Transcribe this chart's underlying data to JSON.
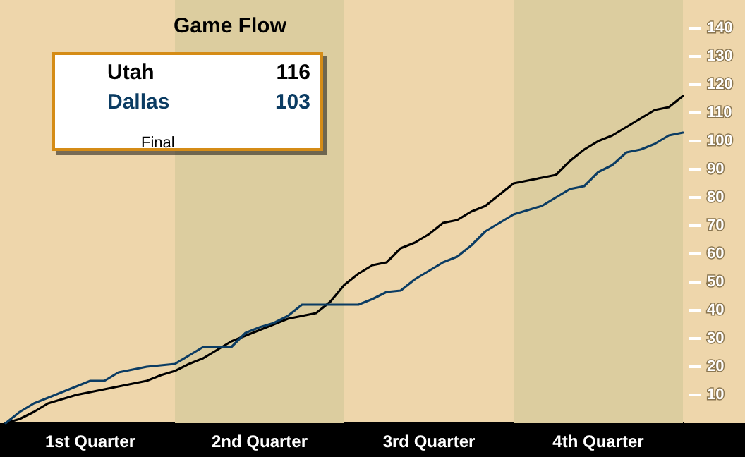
{
  "chart_data": {
    "type": "line",
    "title": "Game Flow",
    "annotations": [
      "116",
      "103",
      "Final"
    ],
    "categories": [
      null,
      null,
      null,
      null,
      null,
      null,
      "1st Quarter",
      null,
      null,
      null,
      null,
      null,
      null,
      null,
      null,
      null,
      null,
      null,
      "2nd Quarter",
      null,
      null,
      null,
      null,
      null,
      null,
      null,
      null,
      null,
      null,
      null,
      "3rd Quarter",
      null,
      null,
      null,
      null,
      null,
      null,
      null,
      null,
      null,
      null,
      null,
      "4th Quarter",
      null,
      null,
      null,
      null,
      null,
      null
    ],
    "ylim": [
      0,
      150
    ],
    "yticks": [
      10,
      20,
      30,
      40,
      50,
      60,
      70,
      80,
      90,
      100,
      110,
      120,
      130,
      140
    ],
    "legend": "top left",
    "marker": "none",
    "line_style": "solid",
    "series": [
      {
        "name": "Utah",
        "color": "#000000",
        "values": [
          0,
          1.5,
          4,
          7,
          8.5,
          10,
          11,
          12,
          13,
          14,
          15,
          17,
          18.5,
          21,
          23,
          26,
          29,
          31,
          33,
          35,
          37,
          38,
          39,
          43,
          49,
          53,
          56,
          57,
          62,
          64,
          67,
          71,
          72,
          75,
          77,
          81,
          85,
          86,
          87,
          88,
          93,
          97,
          100,
          102,
          105,
          108,
          111,
          112,
          116
        ]
      },
      {
        "name": "Dallas",
        "color": "#0b3c63",
        "values": [
          0,
          4,
          7,
          9,
          11,
          13,
          15,
          15,
          18,
          19,
          20,
          20.5,
          21,
          24,
          27,
          27,
          27,
          32,
          34,
          35.5,
          38,
          42,
          42,
          42,
          42,
          42,
          44,
          46.5,
          47,
          51,
          54,
          57,
          59,
          63,
          68,
          71,
          74,
          75.5,
          77,
          80,
          83,
          84,
          89,
          91.5,
          96,
          97,
          99,
          102,
          103
        ]
      }
    ]
  }
}
